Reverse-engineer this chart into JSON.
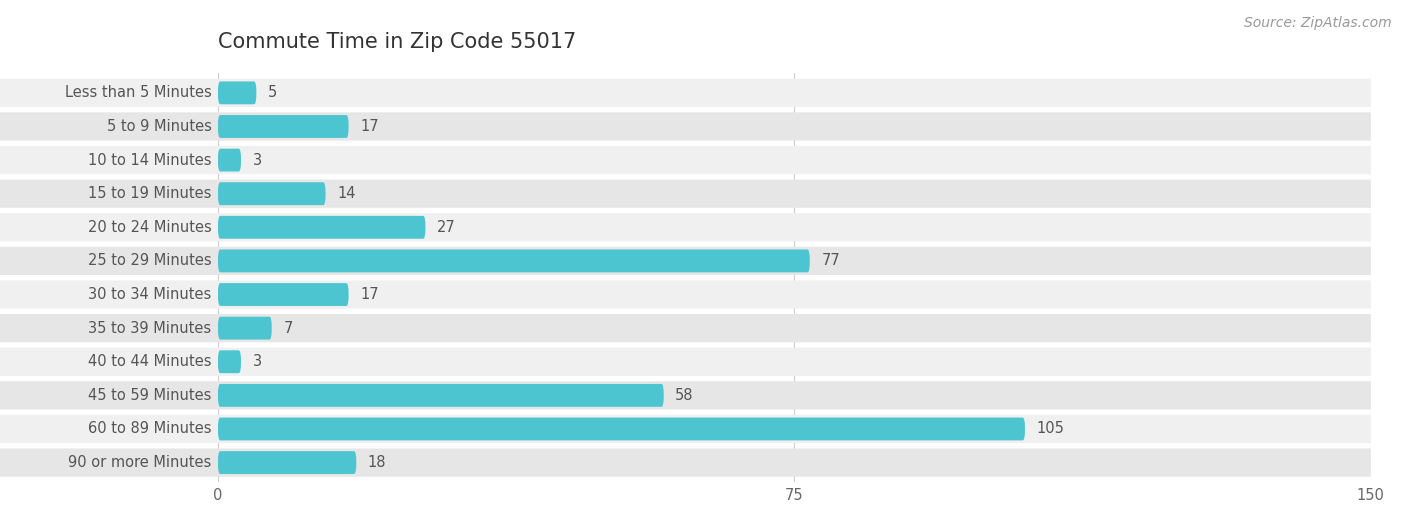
{
  "title": "Commute Time in Zip Code 55017",
  "source": "Source: ZipAtlas.com",
  "categories": [
    "Less than 5 Minutes",
    "5 to 9 Minutes",
    "10 to 14 Minutes",
    "15 to 19 Minutes",
    "20 to 24 Minutes",
    "25 to 29 Minutes",
    "30 to 34 Minutes",
    "35 to 39 Minutes",
    "40 to 44 Minutes",
    "45 to 59 Minutes",
    "60 to 89 Minutes",
    "90 or more Minutes"
  ],
  "values": [
    5,
    17,
    3,
    14,
    27,
    77,
    17,
    7,
    3,
    58,
    105,
    18
  ],
  "bar_color": "#4dc5d0",
  "row_bg_even": "#f0f0f0",
  "row_bg_odd": "#e6e6e6",
  "background_color": "#ffffff",
  "title_color": "#333333",
  "label_color": "#555555",
  "value_color": "#555555",
  "source_color": "#999999",
  "xlim": [
    0,
    150
  ],
  "xticks": [
    0,
    75,
    150
  ],
  "title_fontsize": 15,
  "label_fontsize": 10.5,
  "value_fontsize": 10.5,
  "source_fontsize": 10
}
